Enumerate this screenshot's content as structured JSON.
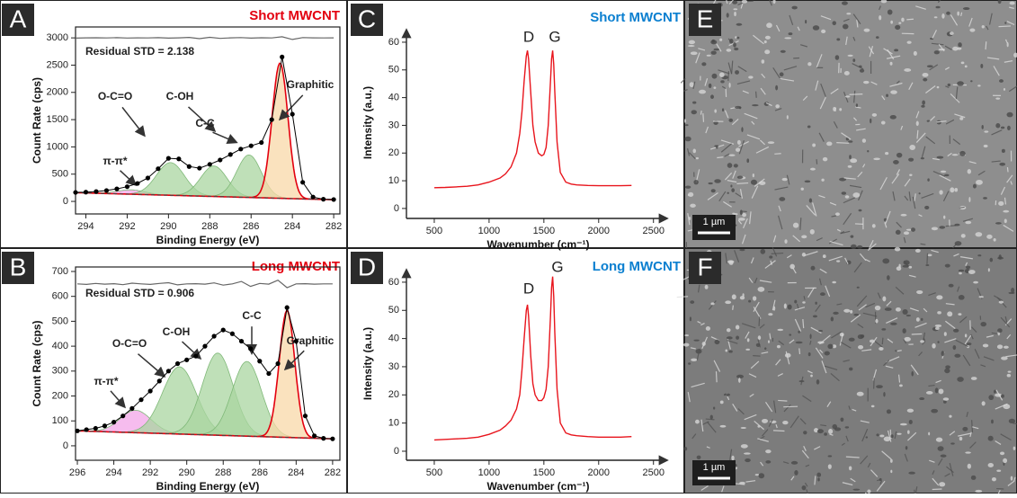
{
  "chart_data": [
    {
      "type": "scatter",
      "panel": "A",
      "title": "Short MWCNT",
      "title_color": "#e3000f",
      "xlabel": "Binding Energy (eV)",
      "ylabel": "Count Rate (cps)",
      "note": "Residual STD = 2.138",
      "xlim": [
        294.5,
        281.7
      ],
      "ylim": [
        -230,
        3200
      ],
      "xticks": [
        294,
        292,
        290,
        288,
        286,
        284,
        282
      ],
      "yticks": [
        0,
        500,
        1000,
        1500,
        2000,
        2500,
        3000
      ],
      "x": [
        294.5,
        294,
        293.5,
        293,
        292.5,
        292,
        291.5,
        291,
        290.5,
        290,
        289.5,
        289,
        288.5,
        288,
        287.5,
        287,
        286.5,
        286,
        285.5,
        285,
        284.5,
        284,
        283.5,
        283,
        282.5,
        282
      ],
      "values": [
        165,
        170,
        180,
        200,
        230,
        270,
        330,
        430,
        600,
        790,
        780,
        640,
        610,
        680,
        760,
        860,
        960,
        1020,
        1080,
        1500,
        2650,
        1600,
        350,
        80,
        40,
        35
      ],
      "color": "#000000",
      "residual": [
        2995,
        3000,
        3002,
        2998,
        3003,
        2997,
        3001,
        2999,
        3004,
        2996,
        3000,
        3008,
        2985,
        3010,
        2990,
        3000,
        3005,
        2995,
        3002,
        2998,
        3020,
        2970,
        3005,
        3000,
        2999,
        3001
      ],
      "residual_color": "#666666",
      "baseline": {
        "x": [
          294.5,
          282
        ],
        "values": [
          160,
          30
        ]
      },
      "components": [
        {
          "name": "π-π*",
          "center": 291.8,
          "height": 80,
          "fwhm": 1.6,
          "color": "#f3a6e8"
        },
        {
          "name": "O-C=O",
          "center": 289.9,
          "height": 600,
          "fwhm": 1.6,
          "color": "#a9d6a0"
        },
        {
          "name": "C-OH",
          "center": 287.8,
          "height": 560,
          "fwhm": 1.5,
          "color": "#a9d6a0"
        },
        {
          "name": "C-C",
          "center": 286.1,
          "height": 780,
          "fwhm": 1.4,
          "color": "#a9d6a0"
        },
        {
          "name": "Graphitic",
          "center": 284.6,
          "height": 2480,
          "fwhm": 0.9,
          "color": "#f8d8a8"
        }
      ]
    },
    {
      "type": "scatter",
      "panel": "B",
      "title": "Long MWCNT",
      "title_color": "#e3000f",
      "xlabel": "Binding Energy (eV)",
      "ylabel": "Count Rate (cps)",
      "note": "Residual STD = 0.906",
      "xlim": [
        296.1,
        281.6
      ],
      "ylim": [
        -58,
        718
      ],
      "xticks": [
        296,
        294,
        292,
        290,
        288,
        286,
        284,
        282
      ],
      "yticks": [
        0,
        100,
        200,
        300,
        400,
        500,
        600,
        700
      ],
      "x": [
        296,
        295.5,
        295,
        294.5,
        294,
        293.5,
        293,
        292.5,
        292,
        291.5,
        291,
        290.5,
        290,
        289.5,
        289,
        288.5,
        288,
        287.5,
        287,
        286.5,
        286,
        285.5,
        285,
        284.5,
        284,
        283.5,
        283,
        282.5,
        282
      ],
      "values": [
        60,
        65,
        70,
        80,
        95,
        120,
        150,
        185,
        220,
        260,
        300,
        330,
        345,
        360,
        400,
        440,
        465,
        450,
        420,
        390,
        340,
        290,
        330,
        555,
        420,
        120,
        40,
        30,
        28
      ],
      "color": "#000000",
      "residual": [
        650,
        648,
        652,
        649,
        651,
        647,
        653,
        650,
        648,
        652,
        655,
        646,
        650,
        651,
        649,
        654,
        645,
        650,
        660,
        640,
        652,
        649,
        665,
        635,
        650,
        651,
        649,
        650,
        650
      ],
      "residual_color": "#666666",
      "baseline": {
        "x": [
          296,
          282
        ],
        "values": [
          60,
          28
        ]
      },
      "components": [
        {
          "name": "π-π*",
          "center": 292.8,
          "height": 90,
          "fwhm": 2.0,
          "color": "#f3a6e8"
        },
        {
          "name": "O-C=O",
          "center": 290.4,
          "height": 270,
          "fwhm": 2.2,
          "color": "#a9d6a0"
        },
        {
          "name": "C-OH",
          "center": 288.3,
          "height": 330,
          "fwhm": 2.0,
          "color": "#a9d6a0"
        },
        {
          "name": "C-C",
          "center": 286.7,
          "height": 300,
          "fwhm": 1.9,
          "color": "#a9d6a0"
        },
        {
          "name": "Graphitic",
          "center": 284.5,
          "height": 510,
          "fwhm": 1.0,
          "color": "#f8d8a8"
        }
      ]
    },
    {
      "type": "line",
      "panel": "C",
      "title": "Short MWCNT",
      "title_color": "#0a7fd0",
      "xlabel": "Wavenumber (cm⁻¹)",
      "ylabel": "Intensity (a.u.)",
      "xlim": [
        246,
        2650
      ],
      "ylim": [
        -3.6,
        65.5
      ],
      "xticks": [
        500,
        1000,
        1500,
        2000,
        2500
      ],
      "yticks": [
        0,
        10,
        20,
        30,
        40,
        50,
        60
      ],
      "x": [
        500,
        600,
        700,
        800,
        900,
        1000,
        1100,
        1150,
        1200,
        1250,
        1280,
        1300,
        1320,
        1340,
        1350,
        1360,
        1380,
        1400,
        1420,
        1450,
        1480,
        1500,
        1520,
        1540,
        1560,
        1570,
        1580,
        1590,
        1600,
        1620,
        1650,
        1700,
        1750,
        1800,
        1900,
        2000,
        2100,
        2200,
        2300
      ],
      "values": [
        7.5,
        7.6,
        7.8,
        8,
        8.5,
        9.5,
        11,
        12.5,
        15,
        20,
        27,
        35,
        46,
        55,
        57,
        54,
        42,
        30,
        24,
        20,
        19,
        19.5,
        22,
        30,
        46,
        54,
        57,
        52,
        42,
        24,
        13,
        9.5,
        8.8,
        8.5,
        8.3,
        8.2,
        8.2,
        8.2,
        8.3
      ],
      "color": "#e8141c",
      "peak_labels": [
        "D",
        "G"
      ]
    },
    {
      "type": "line",
      "panel": "D",
      "title": "Long MWCNT",
      "title_color": "#0a7fd0",
      "xlabel": "Wavenumber (cm⁻¹)",
      "ylabel": "Intensity (a.u.)",
      "xlim": [
        246,
        2650
      ],
      "ylim": [
        -3.2,
        65.4
      ],
      "xticks": [
        500,
        1000,
        1500,
        2000,
        2500
      ],
      "yticks": [
        0,
        10,
        20,
        30,
        40,
        50,
        60
      ],
      "x": [
        500,
        600,
        700,
        800,
        900,
        1000,
        1100,
        1150,
        1200,
        1250,
        1280,
        1300,
        1320,
        1340,
        1350,
        1360,
        1380,
        1400,
        1420,
        1450,
        1480,
        1500,
        1520,
        1540,
        1560,
        1570,
        1580,
        1590,
        1600,
        1620,
        1650,
        1700,
        1750,
        1800,
        1900,
        2000,
        2100,
        2200,
        2300
      ],
      "values": [
        4,
        4.2,
        4.4,
        4.6,
        5,
        6,
        7.5,
        9,
        11,
        15,
        20,
        29,
        40,
        50,
        52,
        48,
        34,
        24,
        20,
        18,
        18,
        19,
        22,
        30,
        48,
        58,
        62,
        55,
        42,
        22,
        10,
        6.5,
        5.8,
        5.5,
        5.2,
        5,
        5,
        5,
        5.2
      ],
      "color": "#e8141c",
      "peak_labels": [
        "D",
        "G"
      ]
    }
  ],
  "images": [
    {
      "panel": "E",
      "scale_bar": "1 µm"
    },
    {
      "panel": "F",
      "scale_bar": "1 µm"
    }
  ]
}
